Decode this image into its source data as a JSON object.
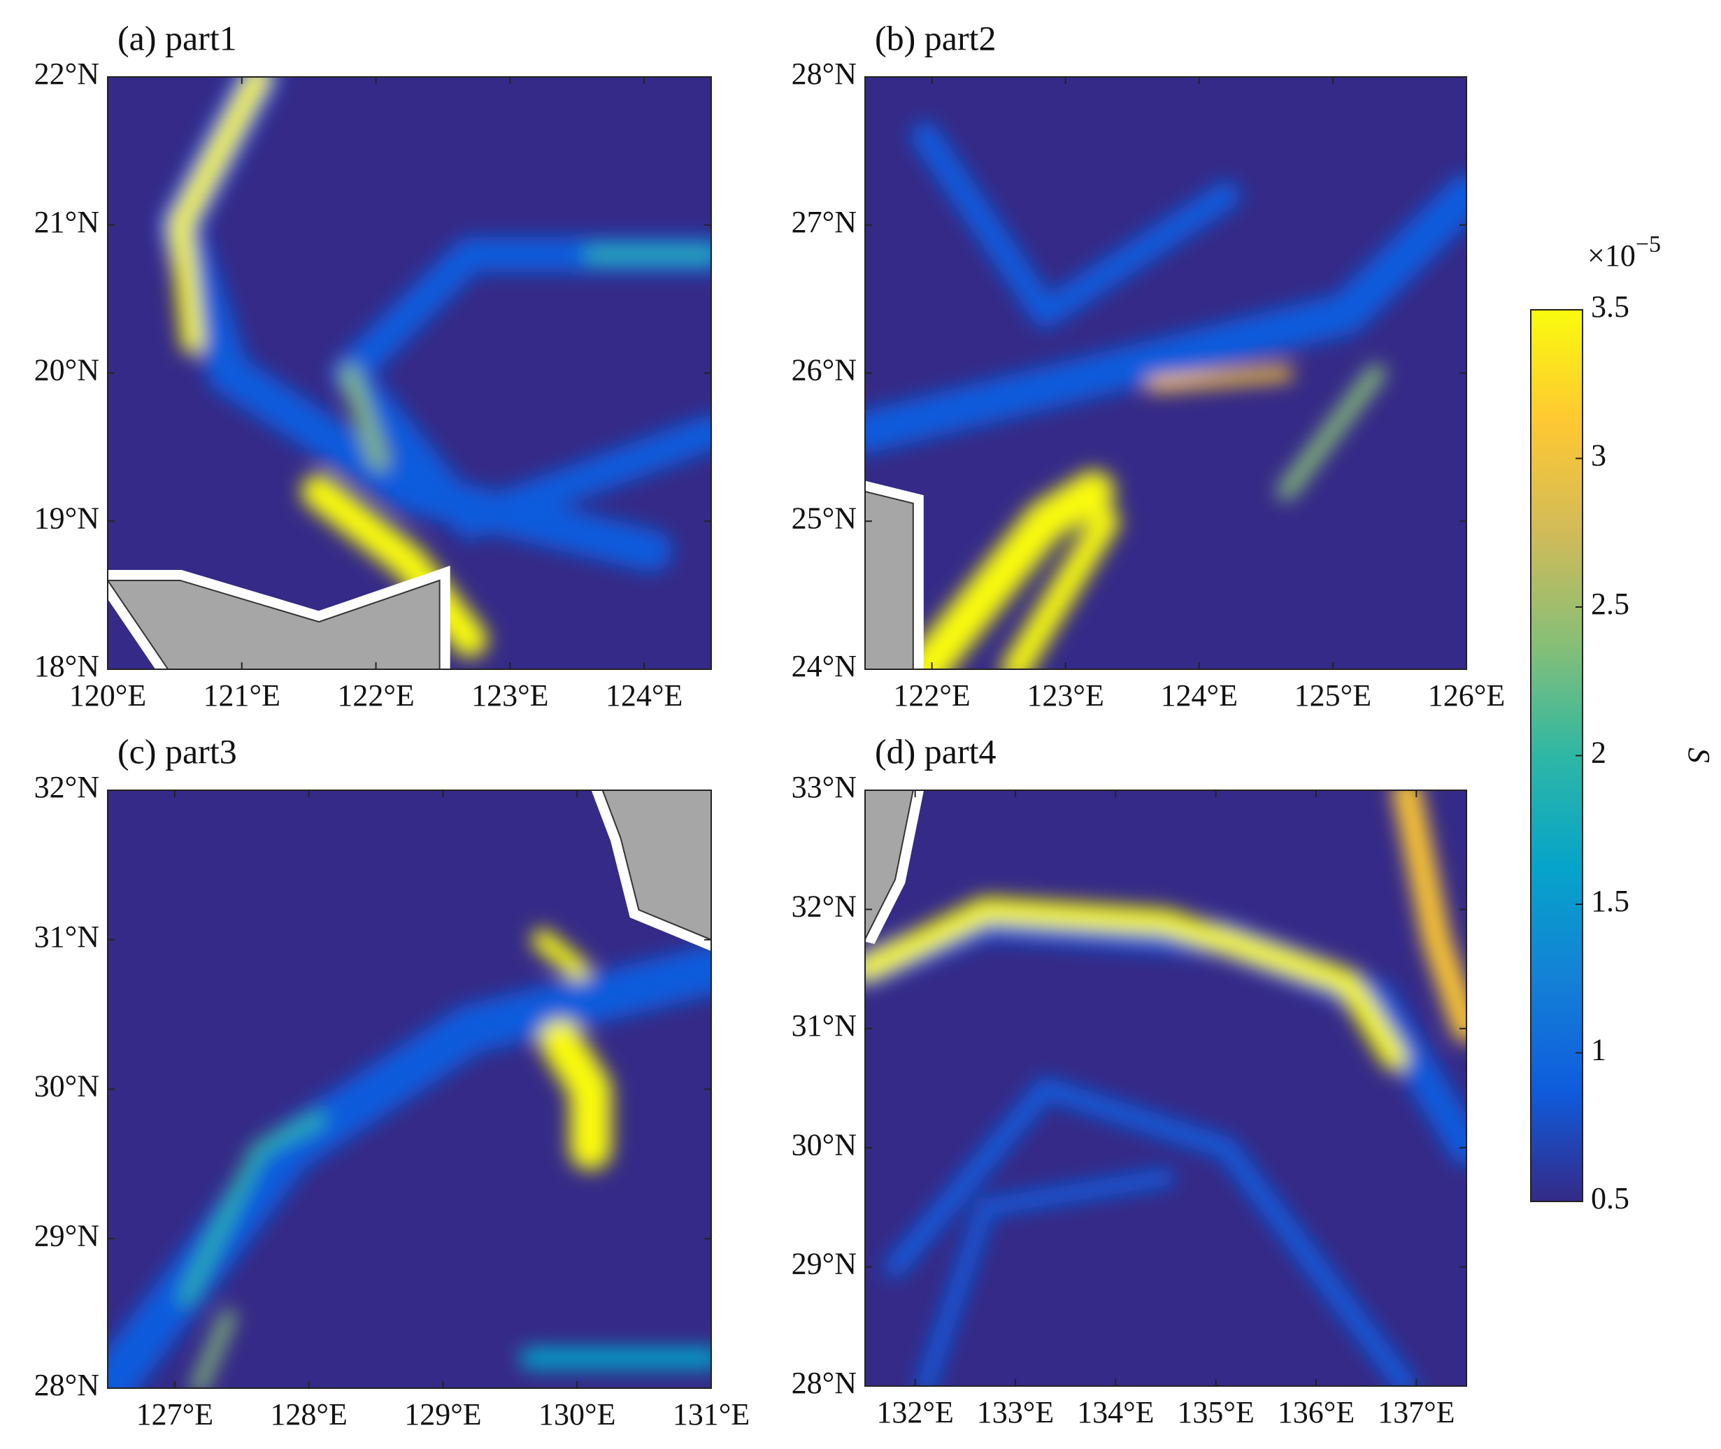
{
  "chart_data": [
    {
      "type": "heatmap",
      "title": "(a) part1",
      "xlim": [
        120,
        124.5
      ],
      "xticks": [
        {
          "value": 120,
          "label": "120°E"
        },
        {
          "value": 121,
          "label": "121°E"
        },
        {
          "value": 122,
          "label": "122°E"
        },
        {
          "value": 123,
          "label": "123°E"
        },
        {
          "value": 124,
          "label": "124°E"
        }
      ],
      "ylim": [
        18,
        22
      ],
      "yticks": [
        {
          "value": 18,
          "label": "18°N"
        },
        {
          "value": 19,
          "label": "19°N"
        },
        {
          "value": 20,
          "label": "20°N"
        },
        {
          "value": 21,
          "label": "21°N"
        },
        {
          "value": 22,
          "label": "22°N"
        }
      ]
    },
    {
      "type": "heatmap",
      "title": "(b) part2",
      "xlim": [
        121.5,
        126
      ],
      "xticks": [
        {
          "value": 122,
          "label": "122°E"
        },
        {
          "value": 123,
          "label": "123°E"
        },
        {
          "value": 124,
          "label": "124°E"
        },
        {
          "value": 125,
          "label": "125°E"
        },
        {
          "value": 126,
          "label": "126°E"
        }
      ],
      "ylim": [
        24,
        28
      ],
      "yticks": [
        {
          "value": 24,
          "label": "24°N"
        },
        {
          "value": 25,
          "label": "25°N"
        },
        {
          "value": 26,
          "label": "26°N"
        },
        {
          "value": 27,
          "label": "27°N"
        },
        {
          "value": 28,
          "label": "28°N"
        }
      ]
    },
    {
      "type": "heatmap",
      "title": "(c) part3",
      "xlim": [
        126.5,
        131
      ],
      "xticks": [
        {
          "value": 127,
          "label": "127°E"
        },
        {
          "value": 128,
          "label": "128°E"
        },
        {
          "value": 129,
          "label": "129°E"
        },
        {
          "value": 130,
          "label": "130°E"
        },
        {
          "value": 131,
          "label": "131°E"
        }
      ],
      "ylim": [
        28,
        32
      ],
      "yticks": [
        {
          "value": 28,
          "label": "28°N"
        },
        {
          "value": 29,
          "label": "29°N"
        },
        {
          "value": 30,
          "label": "30°N"
        },
        {
          "value": 31,
          "label": "31°N"
        },
        {
          "value": 32,
          "label": "32°N"
        }
      ]
    },
    {
      "type": "heatmap",
      "title": "(d) part4",
      "xlim": [
        131.5,
        137.5
      ],
      "xticks": [
        {
          "value": 132,
          "label": "132°E"
        },
        {
          "value": 133,
          "label": "133°E"
        },
        {
          "value": 134,
          "label": "134°E"
        },
        {
          "value": 135,
          "label": "135°E"
        },
        {
          "value": 136,
          "label": "136°E"
        },
        {
          "value": 137,
          "label": "137°E"
        }
      ],
      "ylim": [
        28,
        33
      ],
      "yticks": [
        {
          "value": 28,
          "label": "28°N"
        },
        {
          "value": 29,
          "label": "29°N"
        },
        {
          "value": 30,
          "label": "30°N"
        },
        {
          "value": 31,
          "label": "31°N"
        },
        {
          "value": 32,
          "label": "32°N"
        },
        {
          "value": 33,
          "label": "33°N"
        }
      ]
    }
  ],
  "colorbar": {
    "label": "S",
    "multiplier": "×10",
    "exponent": "−5",
    "lim": [
      0.5,
      3.5
    ],
    "ticks": [
      0.5,
      1,
      1.5,
      2,
      2.5,
      3,
      3.5
    ],
    "colors": [
      "#352a87",
      "#0f5cdd",
      "#1481d6",
      "#06a4ca",
      "#2eb7a4",
      "#87bf77",
      "#d1bb59",
      "#fec832",
      "#f9fb0e"
    ]
  }
}
